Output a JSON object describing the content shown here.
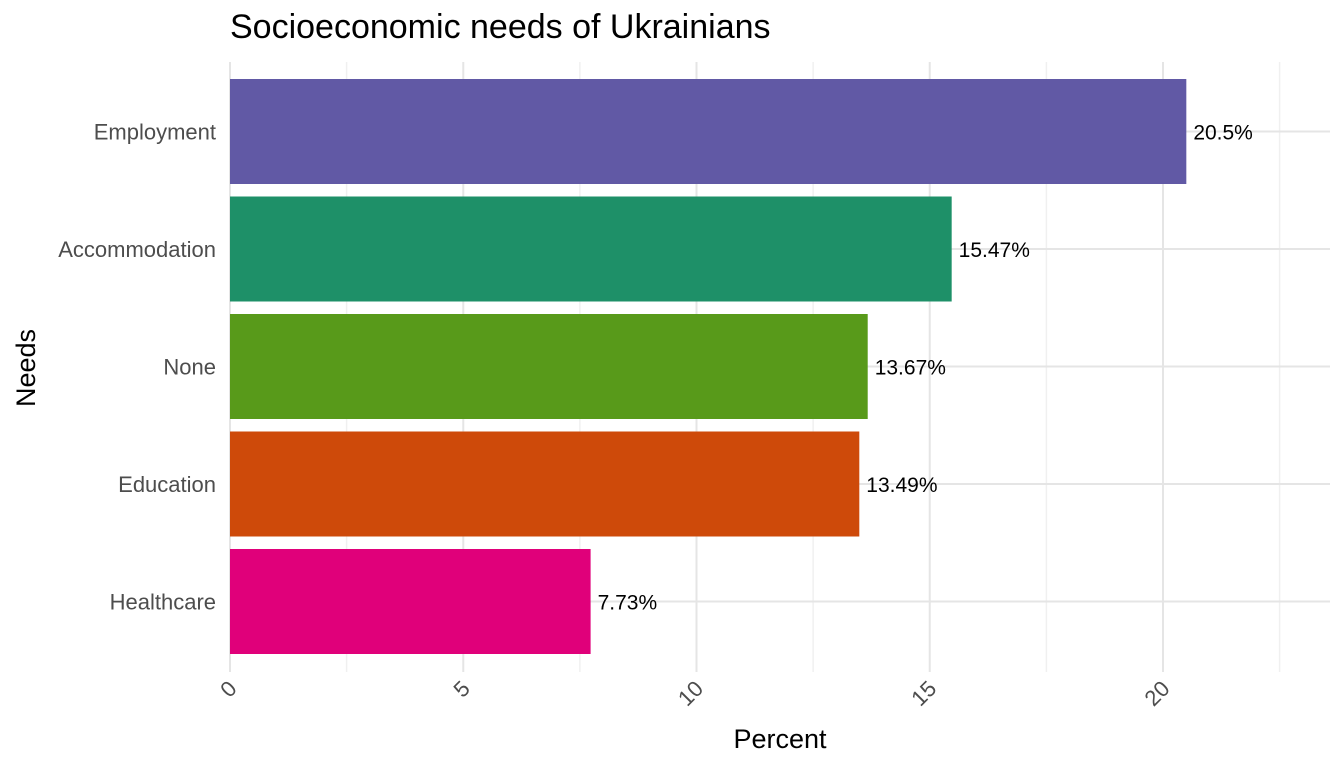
{
  "chart_data": {
    "type": "bar",
    "orientation": "horizontal",
    "title": "Socioeconomic needs of Ukrainians",
    "xlabel": "Percent",
    "ylabel": "Needs",
    "categories": [
      "Employment",
      "Accommodation",
      "None",
      "Education",
      "Healthcare"
    ],
    "values": [
      20.5,
      15.47,
      13.67,
      13.49,
      7.73
    ],
    "data_labels": [
      "20.5%",
      "15.47%",
      "13.67%",
      "13.49%",
      "7.73%"
    ],
    "colors": [
      "#6159A5",
      "#1E9068",
      "#589A1A",
      "#CE4A0A",
      "#E0007A"
    ],
    "xlim": [
      0,
      23
    ],
    "xticks": [
      0,
      5,
      10,
      15,
      20
    ],
    "xtick_labels": [
      "0",
      "5",
      "10",
      "15",
      "20"
    ],
    "grid": true,
    "legend": "none"
  }
}
